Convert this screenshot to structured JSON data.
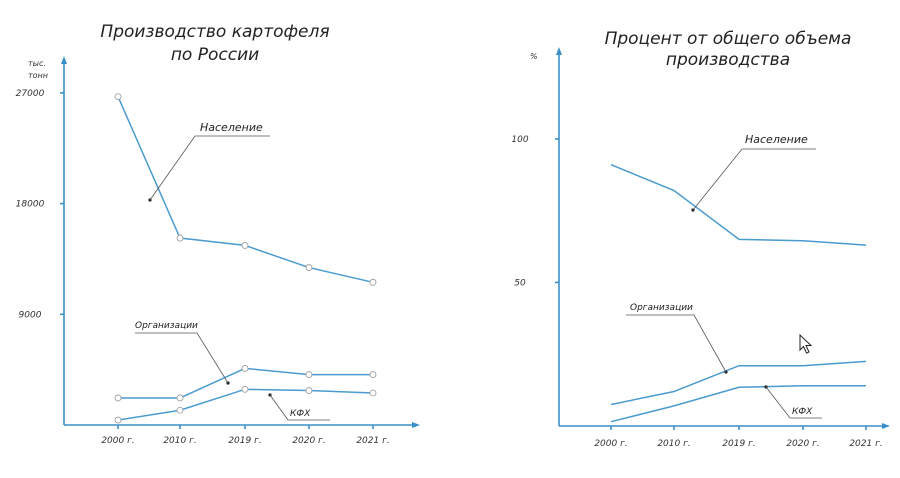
{
  "chart_data": [
    {
      "type": "line",
      "title_lines": [
        "Производство картофеля",
        "по России"
      ],
      "unit_lines": [
        "тыс.",
        "тонн"
      ],
      "categories": [
        "2000 г.",
        "2010 г.",
        "2019 г.",
        "2020 г.",
        "2021 г."
      ],
      "yticks": [
        27000,
        18000,
        9000
      ],
      "ylim": [
        0,
        30000
      ],
      "markers": true,
      "series": [
        {
          "name": "Население",
          "values": [
            26700,
            15200,
            14600,
            12800,
            11600
          ]
        },
        {
          "name": "Организации",
          "values": [
            2200,
            2200,
            4600,
            4100,
            4100
          ]
        },
        {
          "name": "КФХ",
          "values": [
            400,
            1200,
            2900,
            2800,
            2600
          ]
        }
      ]
    },
    {
      "type": "line",
      "title_lines": [
        "Процент от общего объема",
        "производства"
      ],
      "unit_lines": [
        "%"
      ],
      "categories": [
        "2000 г.",
        "2010 г.",
        "2019 г.",
        "2020 г.",
        "2021 г."
      ],
      "yticks": [
        100,
        50
      ],
      "ylim": [
        0,
        132
      ],
      "markers": false,
      "series": [
        {
          "name": "Население",
          "values": [
            91,
            82,
            65,
            64.5,
            63
          ]
        },
        {
          "name": "Организации",
          "values": [
            7.5,
            12,
            21,
            21,
            22.5
          ]
        },
        {
          "name": "КФХ",
          "values": [
            1.5,
            7,
            13.5,
            14,
            14
          ]
        }
      ]
    }
  ]
}
